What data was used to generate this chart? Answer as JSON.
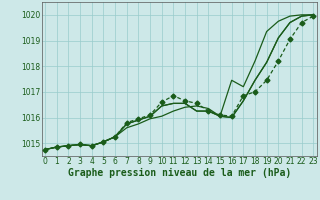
{
  "title": "Graphe pression niveau de la mer (hPa)",
  "bg_color": "#cde8e8",
  "line_color": "#1a5c1a",
  "grid_color": "#99cccc",
  "axis_color": "#555555",
  "ylim": [
    1014.5,
    1020.5
  ],
  "xlim": [
    -0.3,
    23.3
  ],
  "yticks": [
    1015,
    1016,
    1017,
    1018,
    1019,
    1020
  ],
  "xticks": [
    0,
    1,
    2,
    3,
    4,
    5,
    6,
    7,
    8,
    9,
    10,
    11,
    12,
    13,
    14,
    15,
    16,
    17,
    18,
    19,
    20,
    21,
    22,
    23
  ],
  "series_plain": [
    [
      1014.75,
      1014.85,
      1014.9,
      1014.95,
      1014.9,
      1015.05,
      1015.25,
      1015.6,
      1015.75,
      1015.95,
      1016.05,
      1016.25,
      1016.4,
      1016.45,
      1016.35,
      1016.05,
      1017.45,
      1017.2,
      1018.2,
      1019.35,
      1019.75,
      1019.95,
      1020.0,
      1020.0
    ],
    [
      1014.75,
      1014.85,
      1014.9,
      1014.95,
      1014.9,
      1015.05,
      1015.25,
      1015.75,
      1015.9,
      1016.05,
      1016.45,
      1016.55,
      1016.55,
      1016.25,
      1016.25,
      1016.05,
      1016.0,
      1016.65,
      1017.45,
      1018.15,
      1019.1,
      1019.7,
      1019.95,
      1020.0
    ],
    [
      1014.75,
      1014.85,
      1014.9,
      1014.95,
      1014.9,
      1015.05,
      1015.25,
      1015.75,
      1015.9,
      1016.05,
      1016.45,
      1016.55,
      1016.55,
      1016.25,
      1016.25,
      1016.05,
      1016.0,
      1016.65,
      1017.45,
      1018.15,
      1019.1,
      1019.7,
      1019.95,
      1020.0
    ]
  ],
  "series_marked": [
    1014.75,
    1014.85,
    1014.9,
    1014.95,
    1014.9,
    1015.05,
    1015.25,
    1015.8,
    1015.95,
    1016.1,
    1016.6,
    1016.85,
    1016.65,
    1016.55,
    1016.25,
    1016.1,
    1016.05,
    1016.85,
    1017.0,
    1017.45,
    1018.2,
    1019.05,
    1019.7,
    1019.95
  ],
  "linewidth": 0.9,
  "marker": "D",
  "marker_size": 2.5,
  "fontsize_title": 7,
  "fontsize_ticks": 5.5
}
